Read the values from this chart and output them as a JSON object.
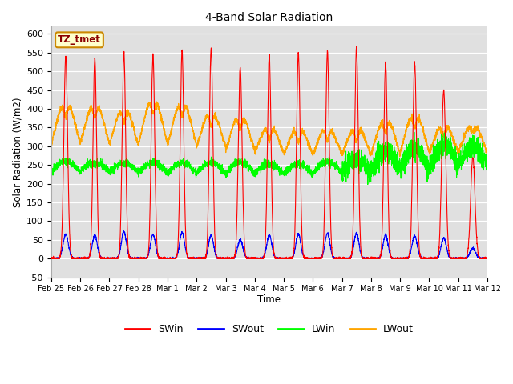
{
  "title": "4-Band Solar Radiation",
  "xlabel": "Time",
  "ylabel": "Solar Radiation (W/m2)",
  "ylim": [
    -50,
    620
  ],
  "yticks": [
    -50,
    0,
    50,
    100,
    150,
    200,
    250,
    300,
    350,
    400,
    450,
    500,
    550,
    600
  ],
  "background_color": "#ffffff",
  "plot_bg_color": "#e0e0e0",
  "annotation_text": "TZ_tmet",
  "colors": {
    "SWin": "red",
    "SWout": "blue",
    "LWin": "lime",
    "LWout": "orange"
  },
  "tick_labels": [
    "Feb 25",
    "Feb 26",
    "Feb 27",
    "Feb 28",
    "Mar 1",
    "Mar 2",
    "Mar 3",
    "Mar 4",
    "Mar 5",
    "Mar 6",
    "Mar 7",
    "Mar 8",
    "Mar 9",
    "Mar 10",
    "Mar 11",
    "Mar 12"
  ],
  "n_days": 15,
  "n_points_per_day": 288
}
